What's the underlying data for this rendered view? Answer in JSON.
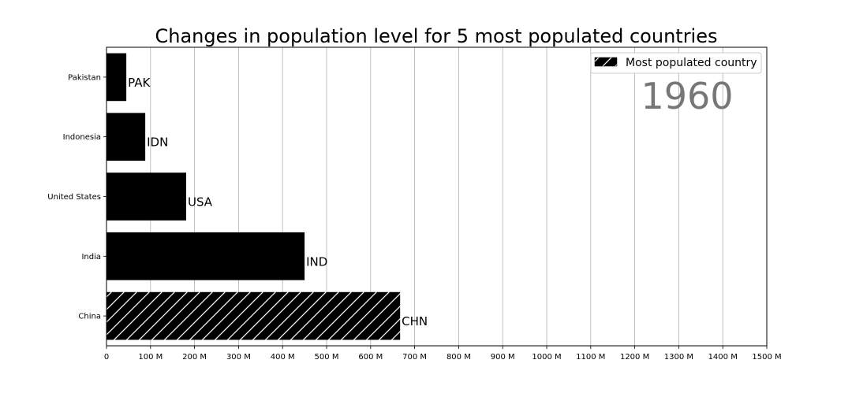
{
  "chart_data": {
    "type": "bar",
    "orientation": "horizontal",
    "title": "Changes in population level for 5 most populated countries",
    "year": "1960",
    "categories": [
      "China",
      "India",
      "United States",
      "Indonesia",
      "Pakistan"
    ],
    "codes": [
      "CHN",
      "IND",
      "USA",
      "IDN",
      "PAK"
    ],
    "values": [
      667,
      450,
      181,
      88,
      45
    ],
    "value_unit": "M",
    "highlighted": "China",
    "xlim": [
      0,
      1500
    ],
    "xticks": [
      "0",
      "100 M",
      "200 M",
      "300 M",
      "400 M",
      "500 M",
      "600 M",
      "700 M",
      "800 M",
      "900 M",
      "1000 M",
      "1100 M",
      "1200 M",
      "1300 M",
      "1400 M",
      "1500 M"
    ],
    "grid": "vertical",
    "legend": {
      "label": "Most populated country",
      "position": "top-right"
    },
    "colors": {
      "bar": "#000000",
      "hatch": "#ffffff",
      "grid": "#b0b0b0",
      "year": "#777777"
    }
  }
}
